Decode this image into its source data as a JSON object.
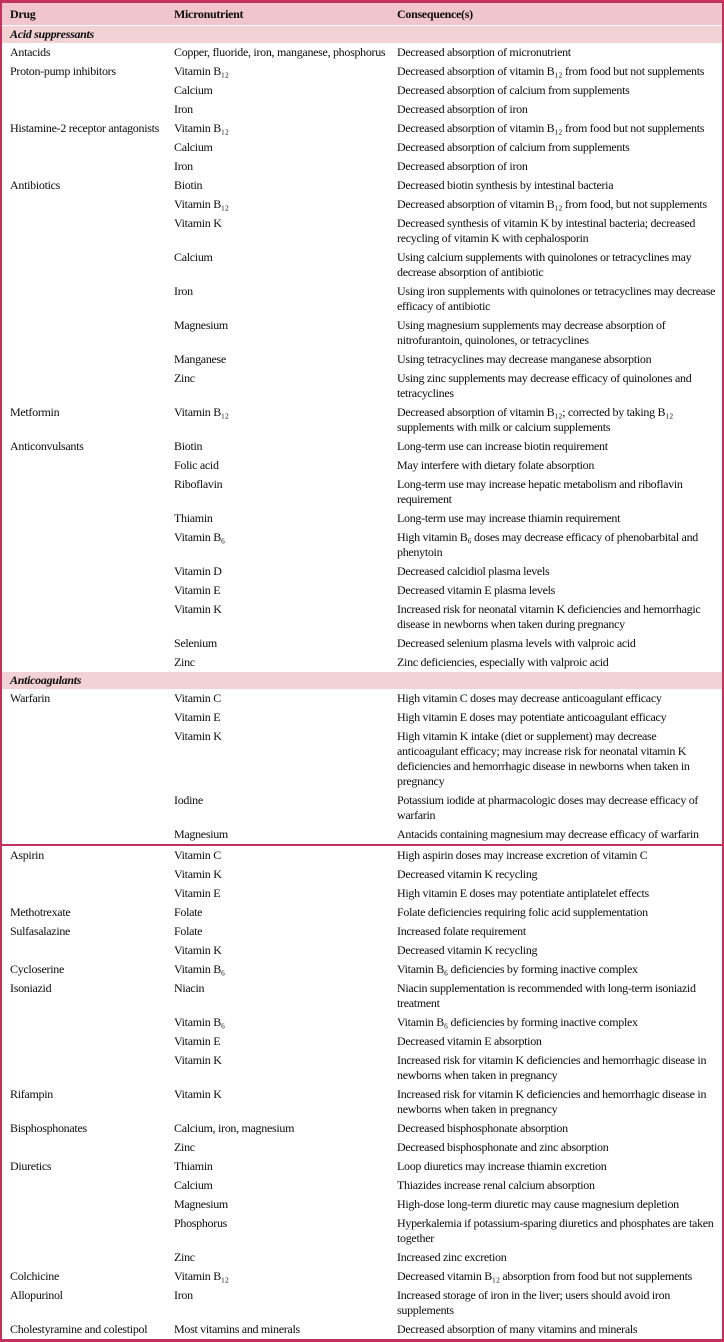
{
  "colors": {
    "accent": "#c2325c",
    "header_bg": "#f0c6cc",
    "section_bg": "#f3d2d6",
    "row_bg": "#ffffff",
    "text": "#0d0d0d"
  },
  "table": {
    "headers": [
      "Drug",
      "Micronutrient",
      "Consequence(s)"
    ],
    "rows": [
      {
        "type": "section",
        "label": "Acid suppressants"
      },
      {
        "type": "data",
        "drug": "Antacids",
        "nutrient": "Copper, fluoride, iron, manganese, phosphorus",
        "consequence": "Decreased absorption of micronutrient"
      },
      {
        "type": "data",
        "drug": "Proton-pump inhibitors",
        "nutrient": "Vitamin B₁₂",
        "consequence": "Decreased absorption of vitamin B₁₂ from food but not supplements"
      },
      {
        "type": "data",
        "drug": "",
        "nutrient": "Calcium",
        "consequence": "Decreased absorption of calcium from supplements"
      },
      {
        "type": "data",
        "drug": "",
        "nutrient": "Iron",
        "consequence": "Decreased absorption of iron"
      },
      {
        "type": "data",
        "drug": "Histamine-2 receptor antagonists",
        "nutrient": "Vitamin B₁₂",
        "consequence": "Decreased absorption of vitamin B₁₂ from food but not supplements"
      },
      {
        "type": "data",
        "drug": "",
        "nutrient": "Calcium",
        "consequence": "Decreased absorption of calcium from supplements"
      },
      {
        "type": "data",
        "drug": "",
        "nutrient": "Iron",
        "consequence": "Decreased absorption of iron"
      },
      {
        "type": "data",
        "drug": "Antibiotics",
        "nutrient": "Biotin",
        "consequence": "Decreased biotin synthesis by intestinal bacteria"
      },
      {
        "type": "data",
        "drug": "",
        "nutrient": "Vitamin B₁₂",
        "consequence": "Decreased absorption of vitamin B₁₂ from food, but not supplements"
      },
      {
        "type": "data",
        "drug": "",
        "nutrient": "Vitamin K",
        "consequence": "Decreased synthesis of vitamin K by intestinal bacteria; decreased recycling of vitamin K with cephalosporin"
      },
      {
        "type": "data",
        "drug": "",
        "nutrient": "Calcium",
        "consequence": "Using calcium supplements with quinolones or tetracyclines may decrease absorption of antibiotic"
      },
      {
        "type": "data",
        "drug": "",
        "nutrient": "Iron",
        "consequence": "Using iron supplements with quinolones or tetracyclines may decrease efficacy of antibiotic"
      },
      {
        "type": "data",
        "drug": "",
        "nutrient": "Magnesium",
        "consequence": "Using magnesium supplements may decrease absorption of nitrofurantoin, quinolones, or tetracyclines"
      },
      {
        "type": "data",
        "drug": "",
        "nutrient": "Manganese",
        "consequence": "Using tetracyclines may decrease manganese absorption"
      },
      {
        "type": "data",
        "drug": "",
        "nutrient": "Zinc",
        "consequence": "Using zinc supplements may decrease efficacy of quinolones and tetracyclines"
      },
      {
        "type": "data",
        "drug": "Metformin",
        "nutrient": "Vitamin B₁₂",
        "consequence": "Decreased absorption of vitamin B₁₂; corrected by taking B₁₂ supplements with milk or calcium supplements"
      },
      {
        "type": "data",
        "drug": "Anticonvulsants",
        "nutrient": "Biotin",
        "consequence": "Long-term use can increase biotin requirement"
      },
      {
        "type": "data",
        "drug": "",
        "nutrient": "Folic acid",
        "consequence": "May interfere with dietary folate absorption"
      },
      {
        "type": "data",
        "drug": "",
        "nutrient": "Riboflavin",
        "consequence": "Long-term use may increase hepatic metabolism and riboflavin requirement"
      },
      {
        "type": "data",
        "drug": "",
        "nutrient": "Thiamin",
        "consequence": "Long-term use may increase thiamin requirement"
      },
      {
        "type": "data",
        "drug": "",
        "nutrient": "Vitamin B₆",
        "consequence": "High vitamin B₆ doses may decrease efficacy of phenobarbital and phenytoin"
      },
      {
        "type": "data",
        "drug": "",
        "nutrient": "Vitamin D",
        "consequence": "Decreased calcidiol plasma levels"
      },
      {
        "type": "data",
        "drug": "",
        "nutrient": "Vitamin E",
        "consequence": "Decreased vitamin E plasma levels"
      },
      {
        "type": "data",
        "drug": "",
        "nutrient": "Vitamin K",
        "consequence": "Increased risk for neonatal vitamin K deficiencies and hemorrhagic disease in newborns when taken during pregnancy"
      },
      {
        "type": "data",
        "drug": "",
        "nutrient": "Selenium",
        "consequence": "Decreased selenium plasma levels with valproic acid"
      },
      {
        "type": "data",
        "drug": "",
        "nutrient": "Zinc",
        "consequence": "Zinc deficiencies, especially with valproic acid"
      },
      {
        "type": "section",
        "label": "Anticoagulants"
      },
      {
        "type": "data",
        "drug": "Warfarin",
        "nutrient": "Vitamin C",
        "consequence": "High vitamin C doses may decrease anticoagulant efficacy"
      },
      {
        "type": "data",
        "drug": "",
        "nutrient": "Vitamin E",
        "consequence": "High vitamin E doses may potentiate anticoagulant efficacy"
      },
      {
        "type": "data",
        "drug": "",
        "nutrient": "Vitamin K",
        "consequence": "High vitamin K intake (diet or supplement) may decrease anticoagulant efficacy; may increase risk for neonatal vitamin K deficiencies and hemorrhagic disease in newborns when taken in pregnancy"
      },
      {
        "type": "data",
        "drug": "",
        "nutrient": "Iodine",
        "consequence": "Potassium iodide at pharmacologic doses may decrease efficacy of warfarin"
      },
      {
        "type": "data",
        "drug": "",
        "nutrient": "Magnesium",
        "consequence": "Antacids containing magnesium may decrease efficacy of warfarin"
      },
      {
        "type": "divider"
      },
      {
        "type": "data",
        "drug": "Aspirin",
        "nutrient": "Vitamin C",
        "consequence": "High aspirin doses may increase excretion of vitamin C"
      },
      {
        "type": "data",
        "drug": "",
        "nutrient": "Vitamin K",
        "consequence": "Decreased vitamin K recycling"
      },
      {
        "type": "data",
        "drug": "",
        "nutrient": "Vitamin E",
        "consequence": "High vitamin E doses may potentiate antiplatelet effects"
      },
      {
        "type": "data",
        "drug": "Methotrexate",
        "nutrient": "Folate",
        "consequence": "Folate deficiencies requiring folic acid supplementation"
      },
      {
        "type": "data",
        "drug": "Sulfasalazine",
        "nutrient": "Folate",
        "consequence": "Increased folate requirement"
      },
      {
        "type": "data",
        "drug": "",
        "nutrient": "Vitamin K",
        "consequence": "Decreased vitamin K recycling"
      },
      {
        "type": "data",
        "drug": "Cycloserine",
        "nutrient": "Vitamin B₆",
        "consequence": "Vitamin B₆ deficiencies by forming inactive complex"
      },
      {
        "type": "data",
        "drug": "Isoniazid",
        "nutrient": "Niacin",
        "consequence": "Niacin supplementation is recommended with long-term isoniazid treatment"
      },
      {
        "type": "data",
        "drug": "",
        "nutrient": "Vitamin B₆",
        "consequence": "Vitamin B₆ deficiencies by forming inactive complex"
      },
      {
        "type": "data",
        "drug": "",
        "nutrient": "Vitamin E",
        "consequence": "Decreased vitamin E absorption"
      },
      {
        "type": "data",
        "drug": "",
        "nutrient": "Vitamin K",
        "consequence": "Increased risk for vitamin K deficiencies and hemorrhagic disease in newborns when taken in pregnancy"
      },
      {
        "type": "data",
        "drug": "Rifampin",
        "nutrient": "Vitamin K",
        "consequence": "Increased risk for vitamin K deficiencies and hemorrhagic disease in newborns when taken in pregnancy"
      },
      {
        "type": "data",
        "drug": "Bisphosphonates",
        "nutrient": "Calcium, iron, magnesium",
        "consequence": "Decreased bisphosphonate absorption"
      },
      {
        "type": "data",
        "drug": "",
        "nutrient": "Zinc",
        "consequence": "Decreased bisphosphonate and zinc absorption"
      },
      {
        "type": "data",
        "drug": "Diuretics",
        "nutrient": "Thiamin",
        "consequence": "Loop diuretics may increase thiamin excretion"
      },
      {
        "type": "data",
        "drug": "",
        "nutrient": "Calcium",
        "consequence": "Thiazides increase renal calcium absorption"
      },
      {
        "type": "data",
        "drug": "",
        "nutrient": "Magnesium",
        "consequence": "High-dose long-term diuretic may cause magnesium depletion"
      },
      {
        "type": "data",
        "drug": "",
        "nutrient": "Phosphorus",
        "consequence": "Hyperkalemia if potassium-sparing diuretics and phosphates are taken together"
      },
      {
        "type": "data",
        "drug": "",
        "nutrient": "Zinc",
        "consequence": "Increased zinc excretion"
      },
      {
        "type": "data",
        "drug": "Colchicine",
        "nutrient": "Vitamin B₁₂",
        "consequence": "Decreased vitamin B₁₂ absorption from food but not supplements"
      },
      {
        "type": "data",
        "drug": "Allopurinol",
        "nutrient": "Iron",
        "consequence": "Increased storage of iron in the liver; users should avoid iron supplements"
      },
      {
        "type": "data",
        "drug": "Cholestyramine and colestipol",
        "nutrient": "Most vitamins and minerals",
        "consequence": "Decreased absorption of many vitamins and minerals"
      }
    ]
  }
}
